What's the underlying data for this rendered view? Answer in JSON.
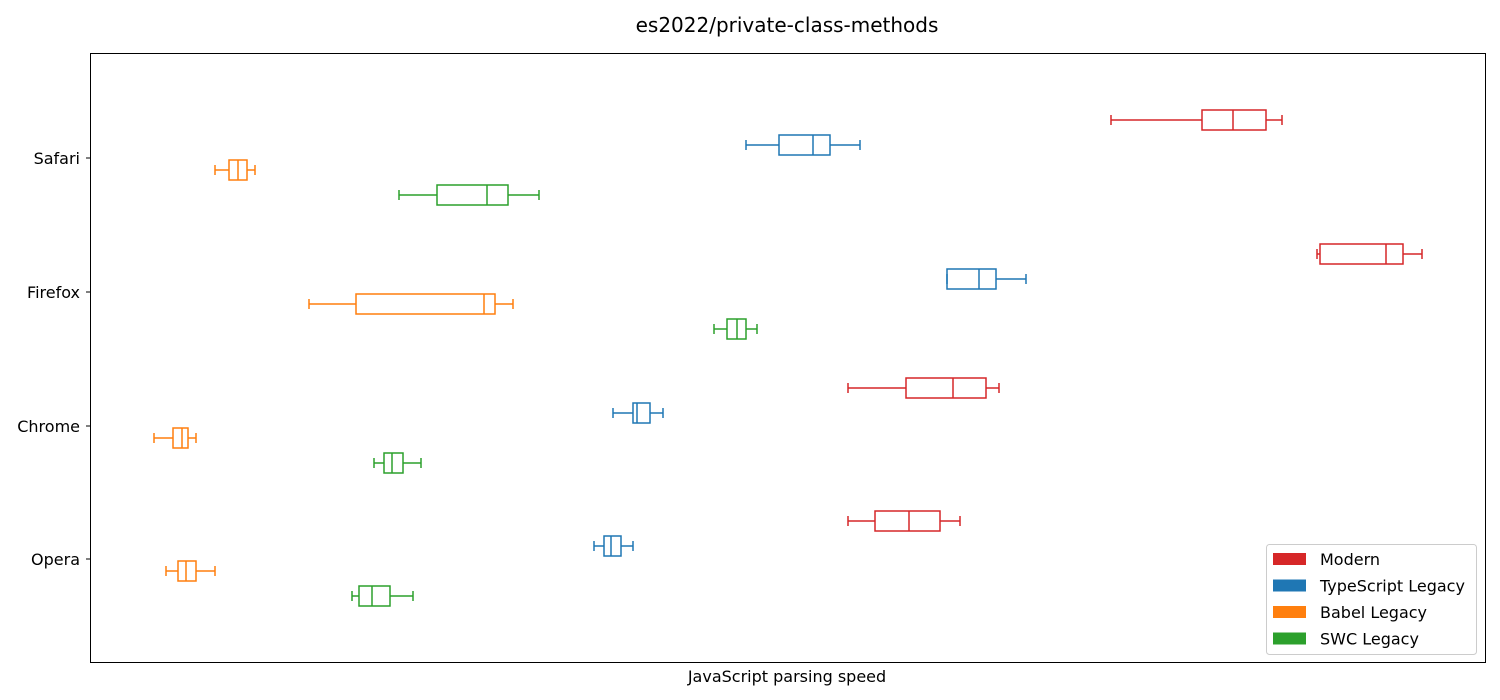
{
  "chart_data": {
    "type": "boxplot",
    "title": "es2022/private-class-methods",
    "xlabel": "JavaScript parsing speed",
    "ylabel": "",
    "x_ticks_shown": false,
    "grid": false,
    "legend_position": "bottom-right",
    "categories": [
      "Safari",
      "Firefox",
      "Chrome",
      "Opera"
    ],
    "series": [
      {
        "name": "Modern",
        "color": "#d62728",
        "boxes": [
          {
            "category": "Safari",
            "whisker_low": 1111,
            "q1": 1202,
            "median": 1233,
            "q3": 1266,
            "whisker_high": 1282
          },
          {
            "category": "Firefox",
            "whisker_low": 1317,
            "q1": 1320,
            "median": 1386,
            "q3": 1403,
            "whisker_high": 1422
          },
          {
            "category": "Chrome",
            "whisker_low": 848,
            "q1": 906,
            "median": 953,
            "q3": 986,
            "whisker_high": 999
          },
          {
            "category": "Opera",
            "whisker_low": 848,
            "q1": 875,
            "median": 909,
            "q3": 940,
            "whisker_high": 960
          }
        ]
      },
      {
        "name": "TypeScript Legacy",
        "color": "#1f77b4",
        "boxes": [
          {
            "category": "Safari",
            "whisker_low": 746,
            "q1": 779,
            "median": 813,
            "q3": 830,
            "whisker_high": 860
          },
          {
            "category": "Firefox",
            "whisker_low": 947,
            "q1": 947,
            "median": 979,
            "q3": 996,
            "whisker_high": 1026
          },
          {
            "category": "Chrome",
            "whisker_low": 613,
            "q1": 633,
            "median": 637,
            "q3": 650,
            "whisker_high": 663
          },
          {
            "category": "Opera",
            "whisker_low": 594,
            "q1": 604,
            "median": 611,
            "q3": 621,
            "whisker_high": 633
          }
        ]
      },
      {
        "name": "Babel Legacy",
        "color": "#ff7f0e",
        "boxes": [
          {
            "category": "Safari",
            "whisker_low": 215,
            "q1": 229,
            "median": 238,
            "q3": 247,
            "whisker_high": 255
          },
          {
            "category": "Firefox",
            "whisker_low": 309,
            "q1": 356,
            "median": 484,
            "q3": 495,
            "whisker_high": 513
          },
          {
            "category": "Chrome",
            "whisker_low": 154,
            "q1": 173,
            "median": 182,
            "q3": 188,
            "whisker_high": 196
          },
          {
            "category": "Opera",
            "whisker_low": 166,
            "q1": 178,
            "median": 186,
            "q3": 196,
            "whisker_high": 215
          }
        ]
      },
      {
        "name": "SWC Legacy",
        "color": "#2ca02c",
        "boxes": [
          {
            "category": "Safari",
            "whisker_low": 399,
            "q1": 437,
            "median": 487,
            "q3": 508,
            "whisker_high": 539
          },
          {
            "category": "Firefox",
            "whisker_low": 714,
            "q1": 727,
            "median": 737,
            "q3": 746,
            "whisker_high": 757
          },
          {
            "category": "Chrome",
            "whisker_low": 374,
            "q1": 384,
            "median": 392,
            "q3": 403,
            "whisker_high": 421
          },
          {
            "category": "Opera",
            "whisker_low": 352,
            "q1": 359,
            "median": 372,
            "q3": 390,
            "whisker_high": 413
          }
        ]
      }
    ]
  }
}
